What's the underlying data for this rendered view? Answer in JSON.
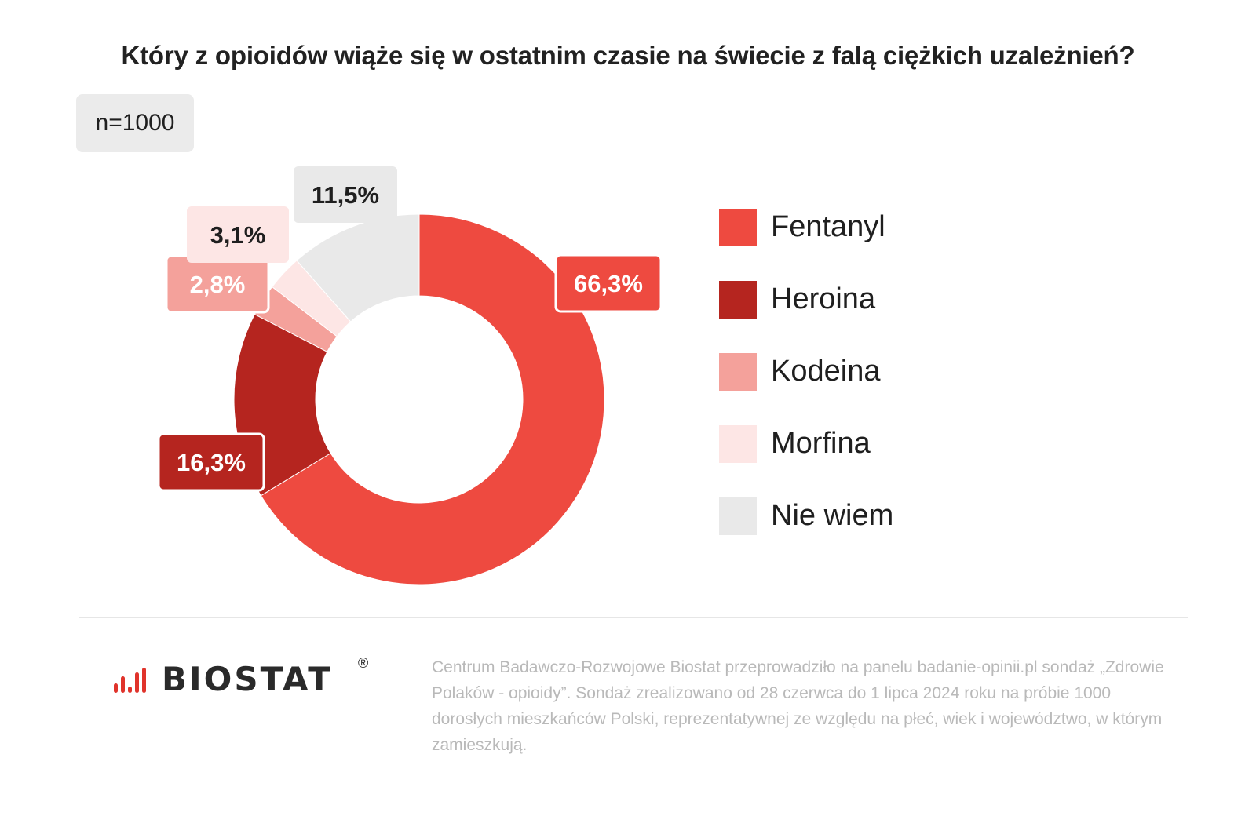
{
  "title": "Który z opioidów wiąże się w ostatnim czasie na świecie z falą ciężkich uzależnień?",
  "sample_size": "n=1000",
  "chart_data": {
    "type": "pie",
    "variant": "donut",
    "title": "Który z opioidów wiąże się w ostatnim czasie na świecie z falą ciężkich uzależnień?",
    "legend_position": "right",
    "categories": [
      "Fentanyl",
      "Heroina",
      "Kodeina",
      "Morfina",
      "Nie wiem"
    ],
    "values": [
      66.3,
      16.3,
      2.8,
      3.1,
      11.5
    ],
    "value_labels": [
      "66,3%",
      "16,3%",
      "2,8%",
      "3,1%",
      "11,5%"
    ],
    "colors": [
      "#ee4a40",
      "#b5251f",
      "#f4a19b",
      "#fde6e5",
      "#e9e9e9"
    ],
    "label_text_colors": [
      "#ffffff",
      "#ffffff",
      "#ffffff",
      "#1f1f1f",
      "#1f1f1f"
    ]
  },
  "legend": {
    "items": [
      {
        "label": "Fentanyl",
        "color": "#ee4a40"
      },
      {
        "label": "Heroina",
        "color": "#b5251f"
      },
      {
        "label": "Kodeina",
        "color": "#f4a19b"
      },
      {
        "label": "Morfina",
        "color": "#fde6e5"
      },
      {
        "label": "Nie wiem",
        "color": "#e9e9e9"
      }
    ]
  },
  "logo": {
    "text": "BIOSTAT",
    "registered": "®",
    "accent_color": "#e0332b"
  },
  "footnote": "Centrum Badawczo-Rozwojowe Biostat przeprowadziło na panelu badanie-opinii.pl sondaż „Zdrowie Polaków - opioidy”. Sondaż zrealizowano od 28 czerwca do 1 lipca 2024 roku na próbie 1000 dorosłych mieszkańców Polski, reprezentatywnej ze względu na płeć, wiek i województwo, w którym zamieszkują."
}
